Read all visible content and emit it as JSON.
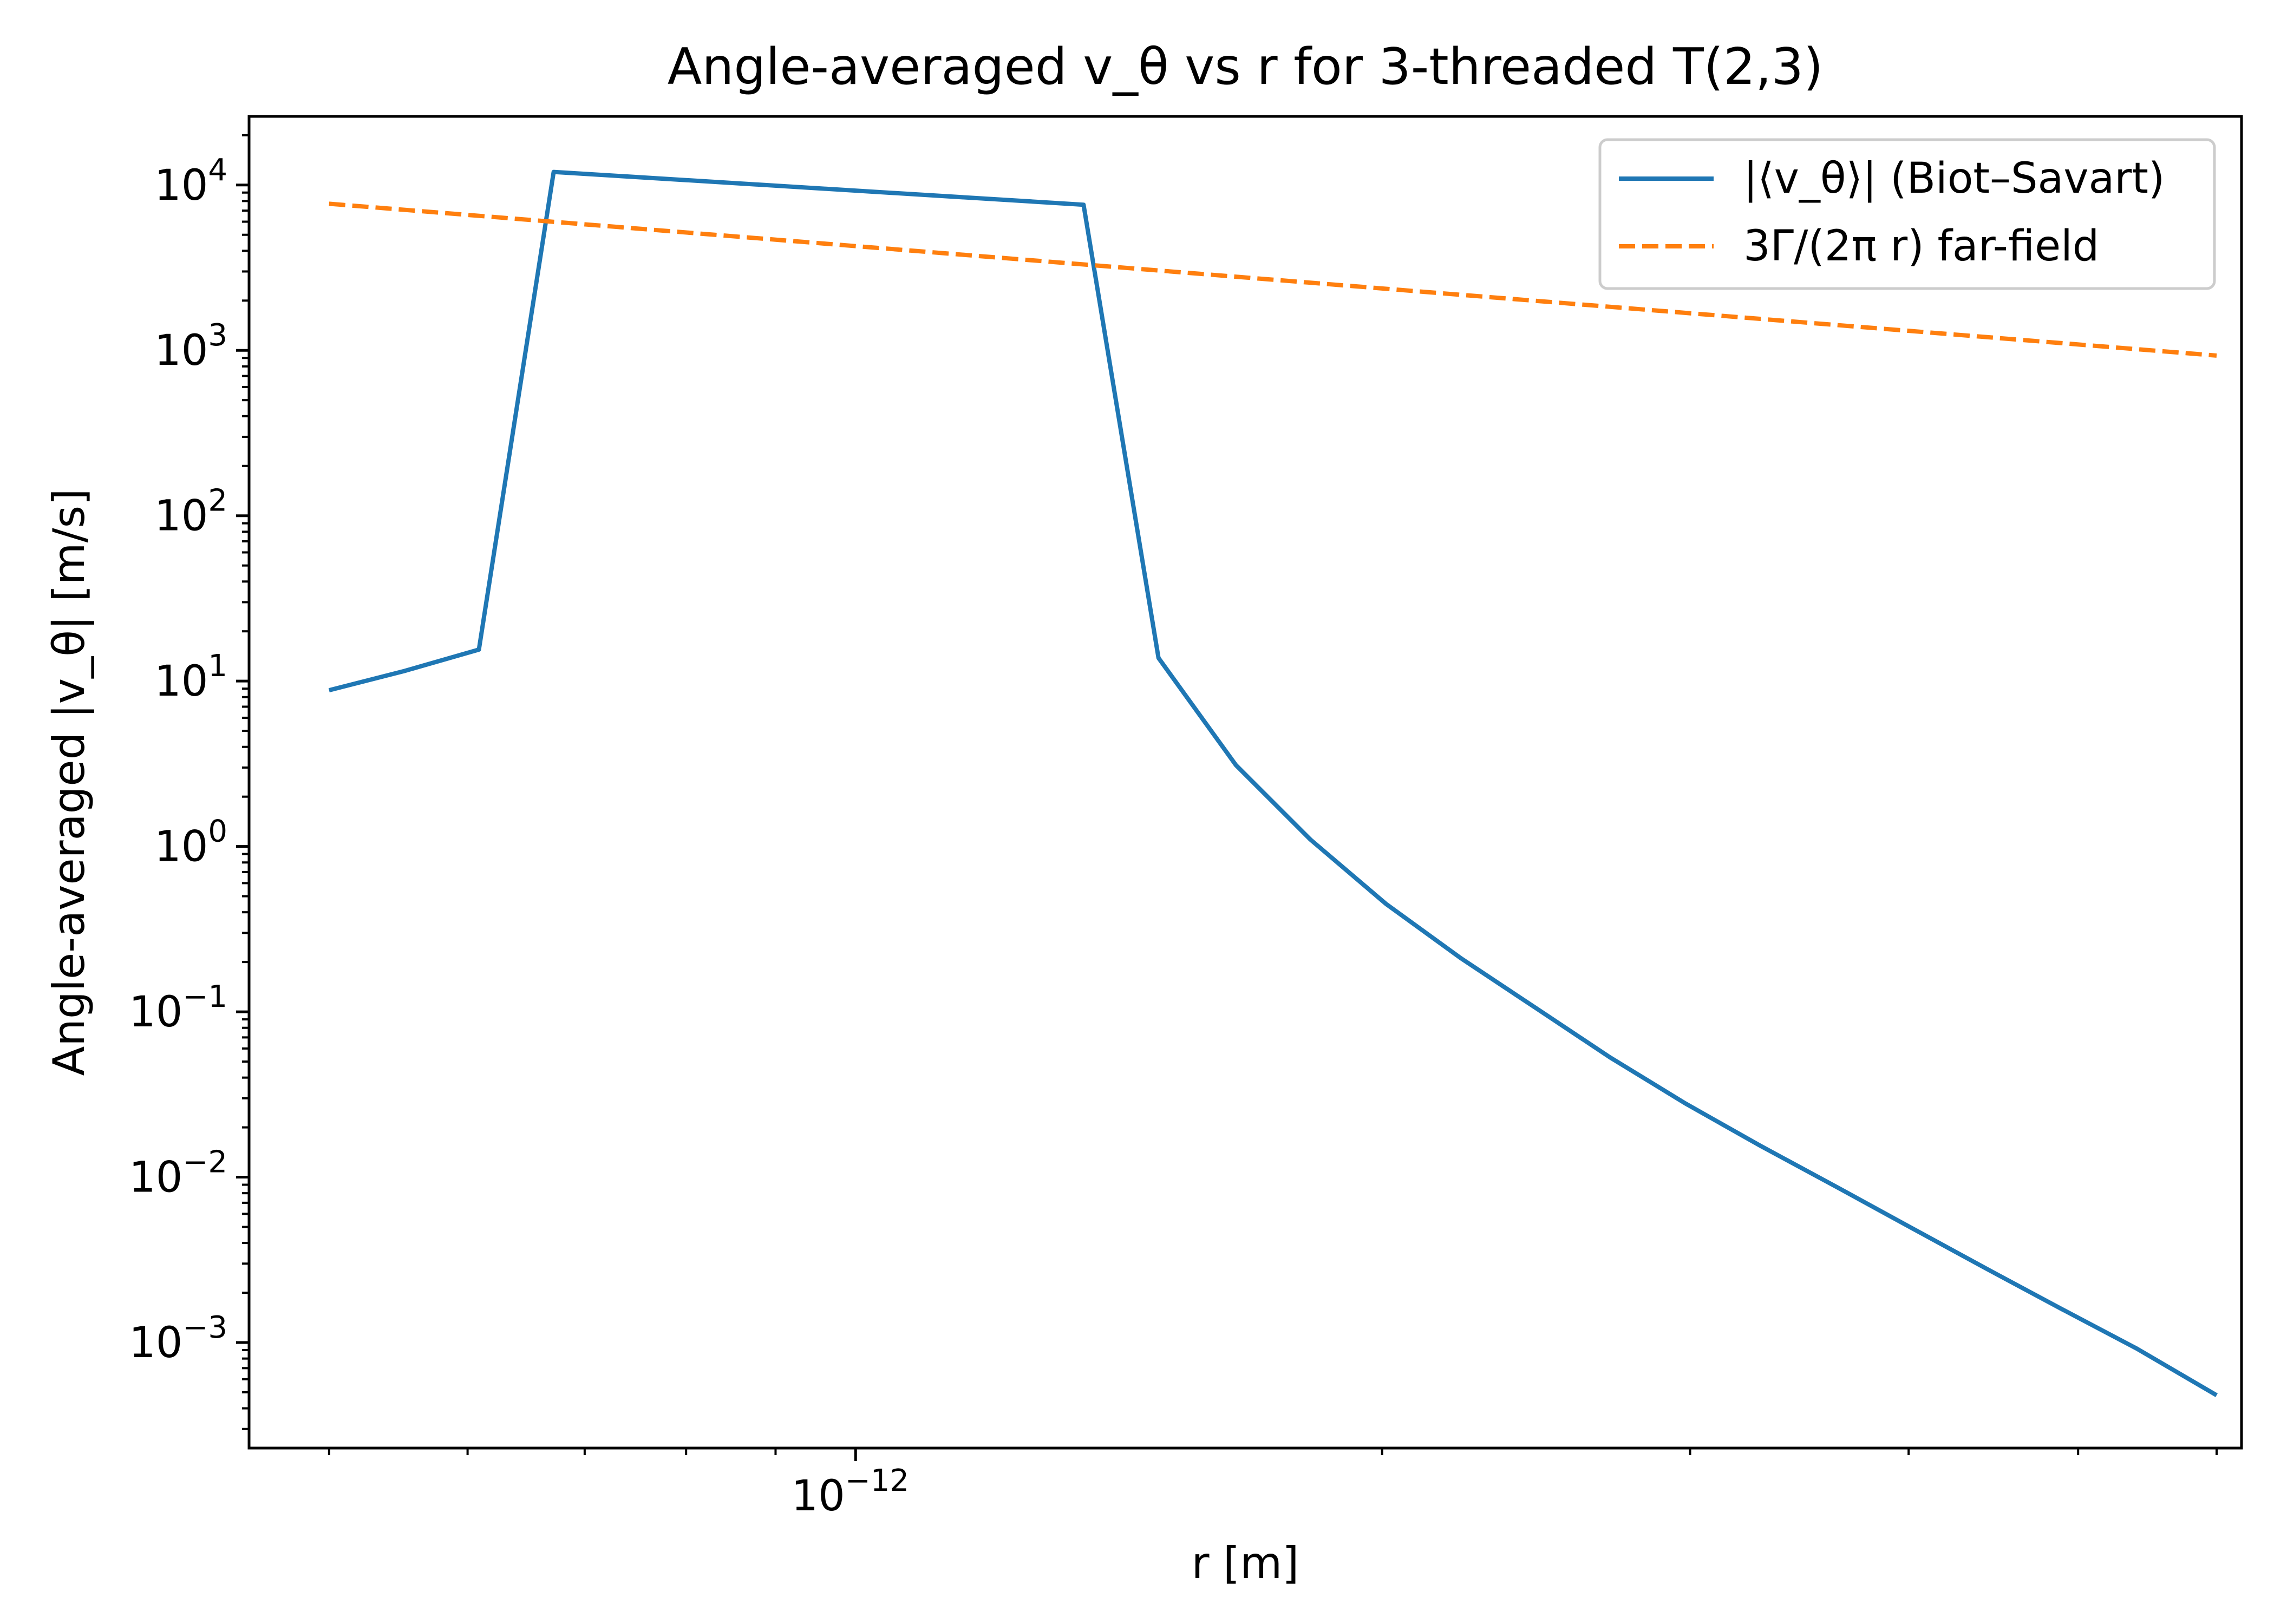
{
  "chart_data": {
    "type": "line",
    "title": "Angle-averaged v_θ vs r for 3-threaded T(2,3)",
    "xlabel": "r [m]",
    "ylabel": "Angle-averaged |v_θ| [m/s]",
    "x_scale": "log",
    "y_scale": "log",
    "xlim": [
      4.5e-13,
      6.2e-12
    ],
    "ylim": [
      0.00023,
      26000.0
    ],
    "grid": false,
    "legend_position": "top-right",
    "x_ticks": [
      {
        "value": 1e-12,
        "base": "10",
        "exp": "−12"
      }
    ],
    "x_minor_ticks": [
      5e-13,
      6e-13,
      7e-13,
      8e-13,
      9e-13,
      2e-12,
      3e-12,
      4e-12,
      5e-12,
      6e-12
    ],
    "y_ticks": [
      {
        "value": 0.001,
        "base": "10",
        "exp": "−3"
      },
      {
        "value": 0.01,
        "base": "10",
        "exp": "−2"
      },
      {
        "value": 0.1,
        "base": "10",
        "exp": "−1"
      },
      {
        "value": 1.0,
        "base": "10",
        "exp": "0"
      },
      {
        "value": 10.0,
        "base": "10",
        "exp": "1"
      },
      {
        "value": 100.0,
        "base": "10",
        "exp": "2"
      },
      {
        "value": 1000.0,
        "base": "10",
        "exp": "3"
      },
      {
        "value": 10000.0,
        "base": "10",
        "exp": "4"
      }
    ],
    "series": [
      {
        "name": "|⟨v_θ⟩| (Biot–Savart)",
        "color": "#1f77b4",
        "style": "solid",
        "x": [
          5e-13,
          5.52e-13,
          6.09e-13,
          6.72e-13,
          1.35e-12,
          1.49e-12,
          1.65e-12,
          1.82e-12,
          2.01e-12,
          2.22e-12,
          2.45e-12,
          2.7e-12,
          2.98e-12,
          3.29e-12,
          3.64e-12,
          4.02e-12,
          4.43e-12,
          4.89e-12,
          5.4e-12,
          6e-12
        ],
        "y": [
          8.8,
          11.5,
          15.5,
          12000,
          7600,
          13.8,
          3.1,
          1.1,
          0.45,
          0.21,
          0.105,
          0.053,
          0.028,
          0.0155,
          0.0087,
          0.0049,
          0.0028,
          0.0016,
          0.00092,
          0.00048
        ]
      },
      {
        "name": "3Γ/(2π r) far-field",
        "color": "#ff7f0e",
        "style": "dashed",
        "x": [
          5e-13,
          6e-12
        ],
        "y": [
          7700,
          930
        ]
      }
    ]
  }
}
